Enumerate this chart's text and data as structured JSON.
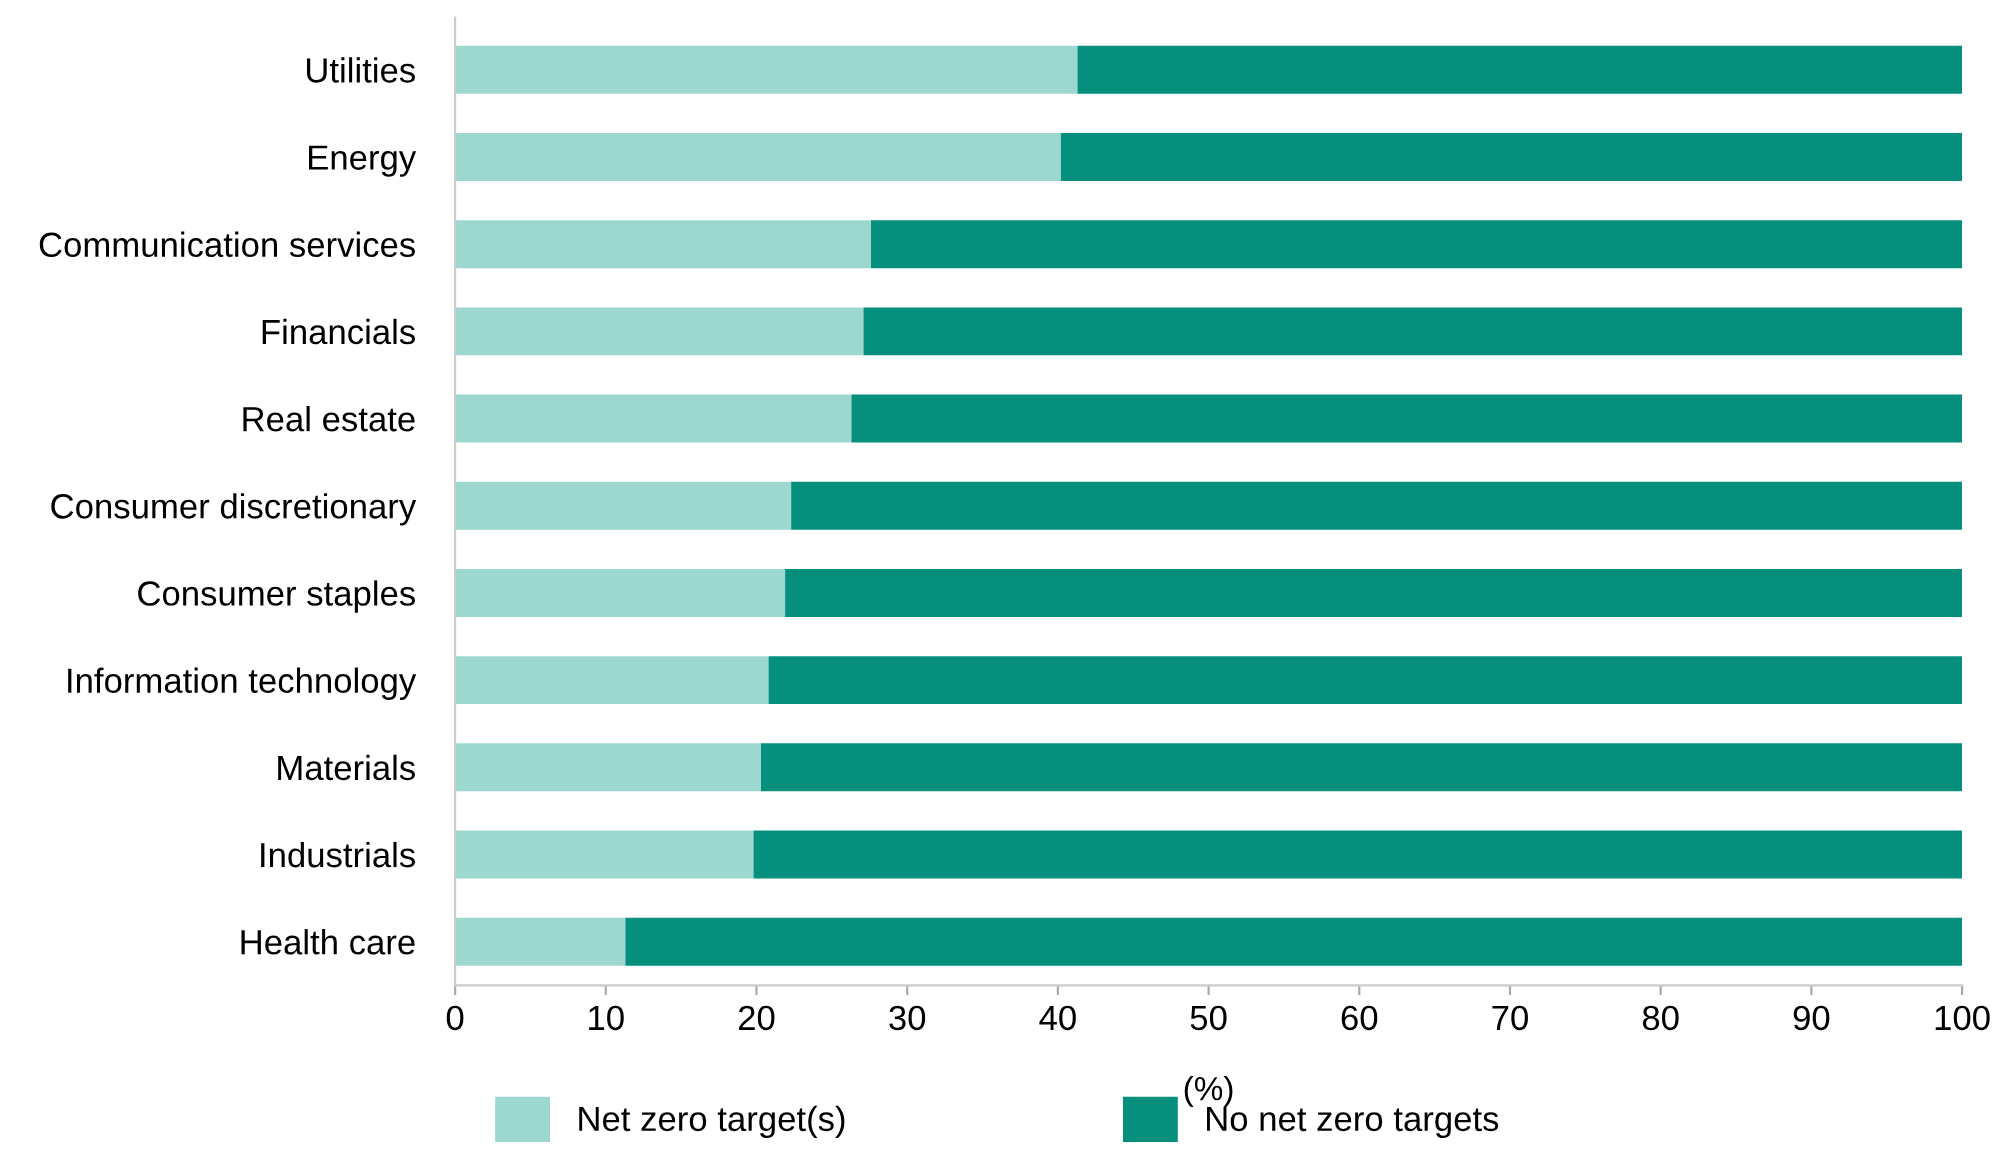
{
  "chart_data": {
    "type": "bar",
    "orientation": "horizontal",
    "stacked": true,
    "xlabel": "(%)",
    "categories": [
      "Utilities",
      "Energy",
      "Communication services",
      "Financials",
      "Real estate",
      "Consumer discretionary",
      "Consumer staples",
      "Information technology",
      "Materials",
      "Industrials",
      "Health care"
    ],
    "series": [
      {
        "name": "Net zero target(s)",
        "color": "#9dd8d0",
        "values": [
          41.3,
          40.2,
          27.6,
          27.1,
          26.3,
          22.3,
          21.9,
          20.8,
          20.3,
          19.8,
          11.3
        ]
      },
      {
        "name": "No net zero targets",
        "color": "#078f7e",
        "values": [
          58.7,
          59.8,
          72.4,
          72.9,
          73.7,
          77.7,
          78.1,
          79.2,
          79.7,
          80.2,
          88.7
        ]
      }
    ],
    "xlim": [
      0,
      100
    ],
    "xticks": [
      0,
      10,
      20,
      30,
      40,
      50,
      60,
      70,
      80,
      90,
      100
    ],
    "grid": false,
    "legend": "bottom"
  }
}
